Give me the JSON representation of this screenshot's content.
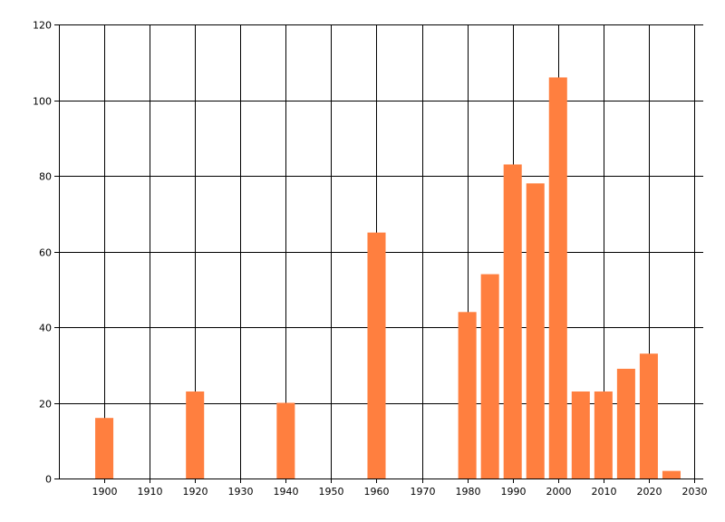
{
  "chart_data": {
    "type": "bar",
    "title": "",
    "xlabel": "",
    "ylabel": "",
    "grid": true,
    "legend": "none",
    "xlim": [
      1890,
      2032
    ],
    "ylim": [
      0,
      120
    ],
    "x_ticks": [
      1900,
      1910,
      1920,
      1930,
      1940,
      1950,
      1960,
      1970,
      1980,
      1990,
      2000,
      2010,
      2020,
      2030
    ],
    "y_ticks": [
      0,
      20,
      40,
      60,
      80,
      100,
      120
    ],
    "bar_width_years": 4,
    "bar_color": "#FF7F3F",
    "series": [
      {
        "x": [
          1900,
          1920,
          1940,
          1960,
          1980,
          1985,
          1990,
          1995,
          2000,
          2005,
          2010,
          2015,
          2020,
          2025
        ],
        "values": [
          16,
          23,
          20,
          65,
          44,
          54,
          83,
          78,
          106,
          23,
          23,
          29,
          33,
          2
        ]
      }
    ]
  }
}
